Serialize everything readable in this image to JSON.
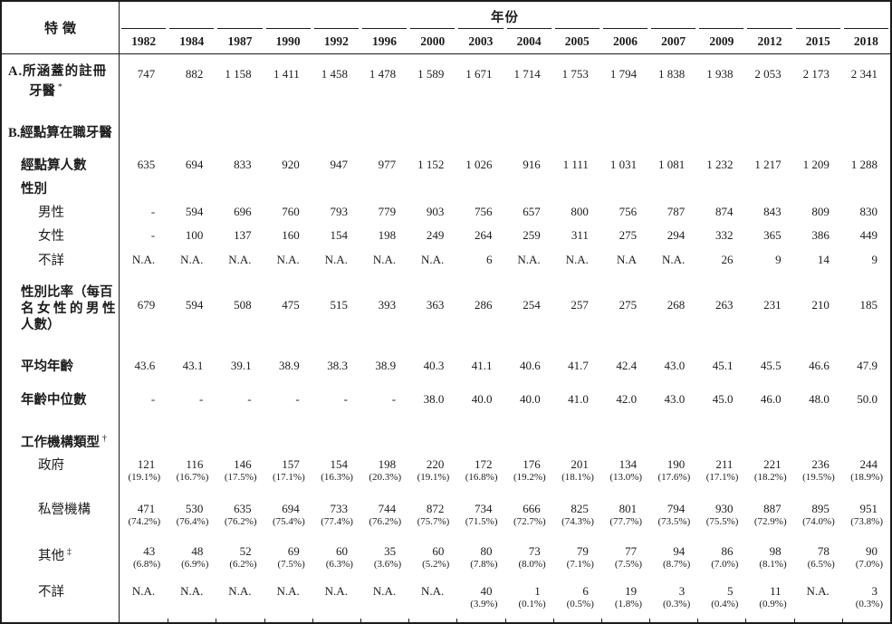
{
  "table": {
    "corner_header": "特徵",
    "year_group_header": "年份",
    "years": [
      "1982",
      "1984",
      "1987",
      "1990",
      "1992",
      "1996",
      "2000",
      "2003",
      "2004",
      "2005",
      "2006",
      "2007",
      "2009",
      "2012",
      "2015",
      "2018"
    ],
    "rows": [
      {
        "id": "covered-registered-dentists",
        "bold": true,
        "h": 65,
        "lpt": 10,
        "vpt": 14,
        "indent": 7,
        "label_lines": [
          {
            "t": "A.所涵蓋的註冊",
            "ls": 1
          },
          {
            "t": "牙醫",
            "ind": 30,
            "sup": "*"
          }
        ],
        "cells": [
          "747",
          "882",
          "1 158",
          "1 411",
          "1 458",
          "1 478",
          "1 589",
          "1 671",
          "1 714",
          "1 753",
          "1 794",
          "1 838",
          "1 938",
          "2 053",
          "2 173",
          "2 341"
        ]
      },
      {
        "id": "enumerated-working-dentists-section",
        "bold": true,
        "h": 40,
        "lpt": 13,
        "indent": 7,
        "label_lines": [
          {
            "t": "B.經點算在職牙醫"
          }
        ],
        "cells": []
      },
      {
        "id": "enumerated-count",
        "bold": true,
        "h": 33,
        "lpt": 9,
        "vpt": 9,
        "indent": 21,
        "label_lines": [
          {
            "t": "經點算人數"
          }
        ],
        "cells": [
          "635",
          "694",
          "833",
          "920",
          "947",
          "977",
          "1 152",
          "1 026",
          "916",
          "1 111",
          "1 031",
          "1 081",
          "1 232",
          "1 217",
          "1 209",
          "1 288"
        ]
      },
      {
        "id": "sex-section",
        "bold": true,
        "h": 24,
        "lpt": 2,
        "indent": 21,
        "label_lines": [
          {
            "t": "性別"
          }
        ],
        "cells": []
      },
      {
        "id": "male",
        "bold": false,
        "h": 27,
        "lpt": 4,
        "vpt": 4,
        "indent": 40,
        "label_lines": [
          {
            "t": "男性"
          }
        ],
        "cells": [
          "-",
          "594",
          "696",
          "760",
          "793",
          "779",
          "903",
          "756",
          "657",
          "800",
          "756",
          "787",
          "874",
          "843",
          "809",
          "830"
        ]
      },
      {
        "id": "female",
        "bold": false,
        "h": 26,
        "lpt": 3,
        "vpt": 3,
        "indent": 40,
        "label_lines": [
          {
            "t": "女性"
          }
        ],
        "cells": [
          "-",
          "100",
          "137",
          "160",
          "154",
          "198",
          "249",
          "264",
          "259",
          "311",
          "275",
          "294",
          "332",
          "365",
          "386",
          "449"
        ]
      },
      {
        "id": "sex-unknown",
        "bold": false,
        "h": 28,
        "lpt": 4,
        "vpt": 4,
        "indent": 40,
        "label_lines": [
          {
            "t": "不詳"
          }
        ],
        "cells": [
          "N.A.",
          "N.A.",
          "N.A.",
          "N.A.",
          "N.A.",
          "N.A.",
          "N.A.",
          "6",
          "N.A.",
          "N.A.",
          "N.A",
          "N.A.",
          "26",
          "9",
          "14",
          "9"
        ]
      },
      {
        "id": "sex-ratio",
        "bold": true,
        "h": 85,
        "lpt": 11,
        "vpt": 26,
        "indent": 21,
        "label_lines": [
          {
            "t": "性別比率（每百"
          },
          {
            "t": "名女性的男性",
            "ls": 3.5
          },
          {
            "t": "人數）"
          }
        ],
        "cells": [
          "679",
          "594",
          "508",
          "475",
          "515",
          "393",
          "363",
          "286",
          "254",
          "257",
          "275",
          "268",
          "263",
          "231",
          "210",
          "185"
        ]
      },
      {
        "id": "mean-age",
        "bold": true,
        "h": 35,
        "lpt": 8,
        "vpt": 8,
        "indent": 21,
        "label_lines": [
          {
            "t": "平均年齡"
          }
        ],
        "cells": [
          "43.6",
          "43.1",
          "39.1",
          "38.9",
          "38.3",
          "38.9",
          "40.3",
          "41.1",
          "40.6",
          "41.7",
          "42.4",
          "43.0",
          "45.1",
          "45.5",
          "46.6",
          "47.9"
        ]
      },
      {
        "id": "median-age",
        "bold": true,
        "h": 40,
        "lpt": 10,
        "vpt": 10,
        "indent": 21,
        "label_lines": [
          {
            "t": "年齡中位數"
          }
        ],
        "cells": [
          "-",
          "-",
          "-",
          "-",
          "-",
          "-",
          "38.0",
          "40.0",
          "40.0",
          "41.0",
          "42.0",
          "43.0",
          "45.0",
          "46.0",
          "48.0",
          "50.0"
        ]
      },
      {
        "id": "workplace-type-section",
        "bold": true,
        "h": 35,
        "lpt": 13,
        "indent": 21,
        "label_lines": [
          {
            "t": "工作機構類型",
            "sup": "†"
          }
        ],
        "cells": []
      },
      {
        "id": "government",
        "bold": false,
        "h": 50,
        "lpt": 7,
        "vpt": 7,
        "indent": 40,
        "label_lines": [
          {
            "t": "政府"
          }
        ],
        "cells": [
          [
            "121",
            "(19.1%)"
          ],
          [
            "116",
            "(16.7%)"
          ],
          [
            "146",
            "(17.5%)"
          ],
          [
            "157",
            "(17.1%)"
          ],
          [
            "154",
            "(16.3%)"
          ],
          [
            "198",
            "(20.3%)"
          ],
          [
            "220",
            "(19.1%)"
          ],
          [
            "172",
            "(16.8%)"
          ],
          [
            "176",
            "(19.2%)"
          ],
          [
            "201",
            "(18.1%)"
          ],
          [
            "134",
            "(13.0%)"
          ],
          [
            "190",
            "(17.6%)"
          ],
          [
            "211",
            "(17.1%)"
          ],
          [
            "221",
            "(18.2%)"
          ],
          [
            "236",
            "(19.5%)"
          ],
          [
            "244",
            "(18.9%)"
          ]
        ]
      },
      {
        "id": "private-sector",
        "bold": false,
        "h": 50,
        "lpt": 6,
        "vpt": 6,
        "indent": 40,
        "label_lines": [
          {
            "t": "私營機構"
          }
        ],
        "cells": [
          [
            "471",
            "(74.2%)"
          ],
          [
            "530",
            "(76.4%)"
          ],
          [
            "635",
            "(76.2%)"
          ],
          [
            "694",
            "(75.4%)"
          ],
          [
            "733",
            "(77.4%)"
          ],
          [
            "744",
            "(76.2%)"
          ],
          [
            "872",
            "(75.7%)"
          ],
          [
            "734",
            "(71.5%)"
          ],
          [
            "666",
            "(72.7%)"
          ],
          [
            "825",
            "(74.3%)"
          ],
          [
            "801",
            "(77.7%)"
          ],
          [
            "794",
            "(73.5%)"
          ],
          [
            "930",
            "(75.5%)"
          ],
          [
            "887",
            "(72.9%)"
          ],
          [
            "895",
            "(74.0%)"
          ],
          [
            "951",
            "(73.8%)"
          ]
        ]
      },
      {
        "id": "others",
        "bold": false,
        "h": 45,
        "lpt": 3,
        "vpt": 3,
        "indent": 40,
        "label_lines": [
          {
            "t": "其他",
            "sup": "‡"
          }
        ],
        "cells": [
          [
            "43",
            "(6.8%)"
          ],
          [
            "48",
            "(6.9%)"
          ],
          [
            "52",
            "(6.2%)"
          ],
          [
            "69",
            "(7.5%)"
          ],
          [
            "60",
            "(6.3%)"
          ],
          [
            "35",
            "(3.6%)"
          ],
          [
            "60",
            "(5.2%)"
          ],
          [
            "80",
            "(7.8%)"
          ],
          [
            "73",
            "(8.0%)"
          ],
          [
            "79",
            "(7.1%)"
          ],
          [
            "77",
            "(7.5%)"
          ],
          [
            "94",
            "(8.7%)"
          ],
          [
            "86",
            "(7.0%)"
          ],
          [
            "98",
            "(8.1%)"
          ],
          [
            "78",
            "(6.5%)"
          ],
          [
            "90",
            "(7.0%)"
          ]
        ]
      },
      {
        "id": "workplace-unknown",
        "bold": false,
        "h": 45,
        "lpt": 2,
        "vpt": 2,
        "indent": 40,
        "label_lines": [
          {
            "t": "不詳"
          }
        ],
        "cells": [
          "N.A.",
          "N.A.",
          "N.A.",
          "N.A.",
          "N.A.",
          "N.A.",
          "N.A.",
          [
            "40",
            "(3.9%)"
          ],
          [
            "1",
            "(0.1%)"
          ],
          [
            "6",
            "(0.5%)"
          ],
          [
            "19",
            "(1.8%)"
          ],
          [
            "3",
            "(0.3%)"
          ],
          [
            "5",
            "(0.4%)"
          ],
          [
            "11",
            "(0.9%)"
          ],
          "N.A.",
          [
            "3",
            "(0.3%)"
          ]
        ]
      }
    ]
  }
}
